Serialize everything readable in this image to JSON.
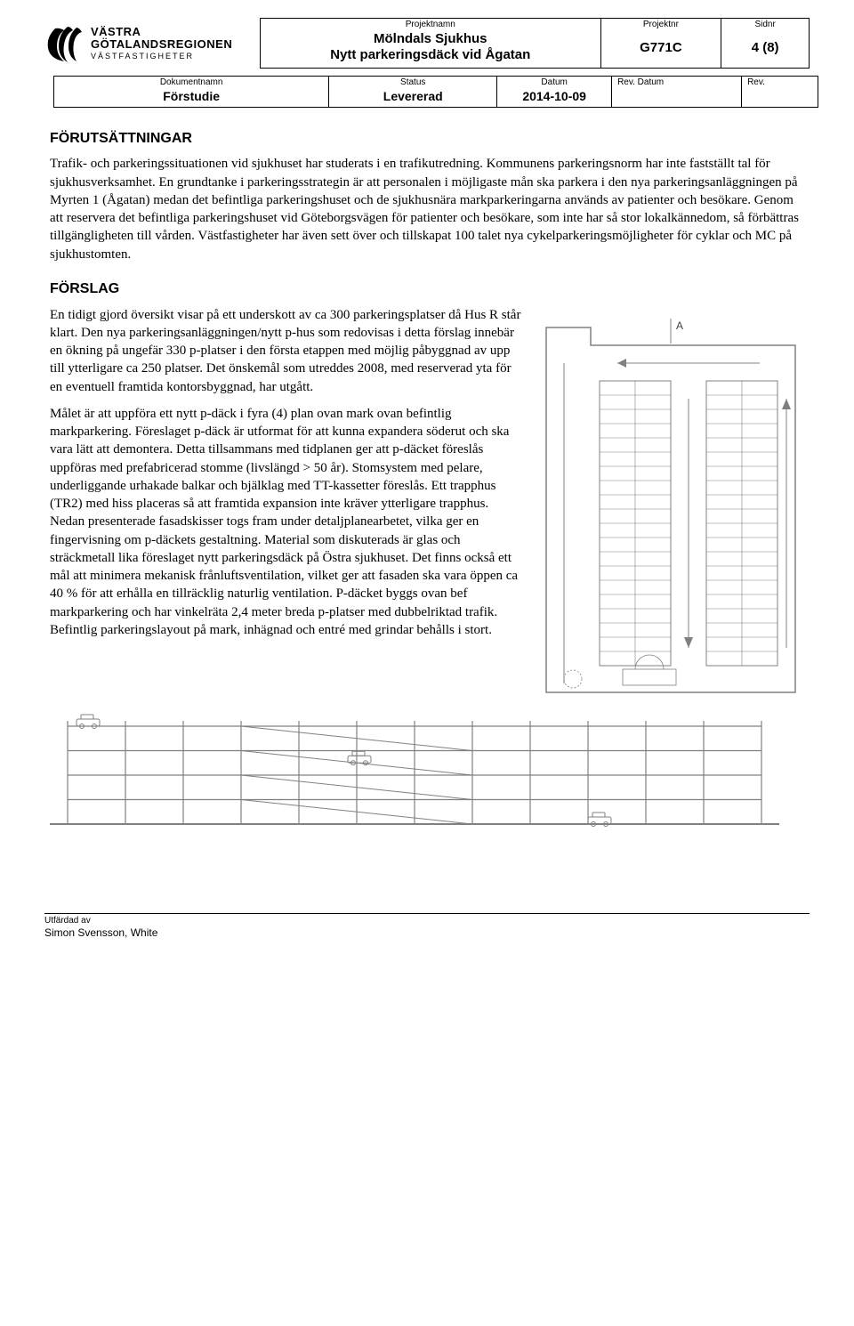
{
  "header": {
    "projektnamn_label": "Projektnamn",
    "projektnamn_line1": "Mölndals Sjukhus",
    "projektnamn_line2": "Nytt parkeringsdäck vid Ågatan",
    "projektnr_label": "Projektnr",
    "projektnr": "G771C",
    "sidnr_label": "Sidnr",
    "sidnr": "4 (8)"
  },
  "subheader": {
    "dokumentnamn_label": "Dokumentnamn",
    "dokumentnamn": "Förstudie",
    "status_label": "Status",
    "status": "Levererad",
    "datum_label": "Datum",
    "datum": "2014-10-09",
    "revdatum_label": "Rev. Datum",
    "revdatum": "",
    "rev_label": "Rev.",
    "rev": ""
  },
  "section1_title": "FÖRUTSÄTTNINGAR",
  "section1_body": "Trafik- och parkeringssituationen vid sjukhuset har studerats i en trafikutredning. Kommunens parkeringsnorm har inte fastställt tal för sjukhusverksamhet. En grundtanke i parkeringsstrategin är att personalen i möjligaste mån ska parkera i den nya parkeringsanläggningen på Myrten 1 (Ågatan) medan det befintliga parkeringshuset och de sjukhusnära markparkeringarna används av patienter och besökare. Genom att reservera det befintliga parkeringshuset vid Göteborgsvägen för patienter och besökare, som inte har så stor lokalkännedom, så förbättras tillgängligheten till vården. Västfastigheter har även sett över och tillskapat 100 talet nya cykelparkeringsmöjligheter för cyklar och MC på sjukhustomten.",
  "section2_title": "FÖRSLAG",
  "section2_p1": "En tidigt gjord översikt visar på ett underskott av ca 300 parkeringsplatser då Hus R står klart. Den nya parkeringsanläggningen/nytt p-hus som redovisas i detta förslag innebär en ökning på ungefär 330 p-platser i den första etappen med möjlig påbyggnad av upp till ytterligare ca 250 platser. Det önskemål som utreddes 2008, med reserverad yta för en eventuell framtida kontorsbyggnad, har utgått.",
  "section2_p2": "Målet är att uppföra ett nytt p-däck i fyra (4) plan ovan mark ovan befintlig markparkering. Föreslaget p-däck är utformat för att kunna expandera söderut och ska vara lätt att demontera. Detta tillsammans med tidplanen ger att p-däcket föreslås uppföras med prefabricerad stomme (livslängd > 50 år). Stomsystem med pelare, underliggande urhakade balkar och bjälklag med TT-kassetter föreslås. Ett trapphus (TR2) med hiss placeras så att framtida expansion inte kräver ytterligare trapphus. Nedan presenterade fasadskisser togs fram under detaljplanearbetet, vilka ger en fingervisning om p-däckets gestaltning. Material som diskuterads är glas och sträckmetall lika föreslaget nytt parkeringsdäck på Östra sjukhuset. Det finns också ett mål att minimera mekanisk frånluftsventilation, vilket ger att fasaden ska vara öppen ca 40 % för att erhålla en tillräcklig naturlig ventilation. P-däcket byggs ovan bef markparkering och har vinkelräta 2,4 meter breda p-platser med dubbelriktad trafik. Befintlig parkeringslayout på mark, inhägnad och entré med grindar behålls i stort.",
  "footer": {
    "utfardad_av_label": "Utfärdad av",
    "utfardad_av": "Simon Svensson, White"
  },
  "logo": {
    "line1": "VÄSTRA",
    "line2": "GÖTALANDSREGIONEN",
    "line3": "VÄSTFASTIGHETER"
  },
  "planview": {
    "label_A": "A",
    "rows": 20,
    "stroke": "#808080",
    "text": "#404040"
  },
  "elevation": {
    "floors": 4,
    "columns": 12,
    "stroke": "#808080"
  }
}
